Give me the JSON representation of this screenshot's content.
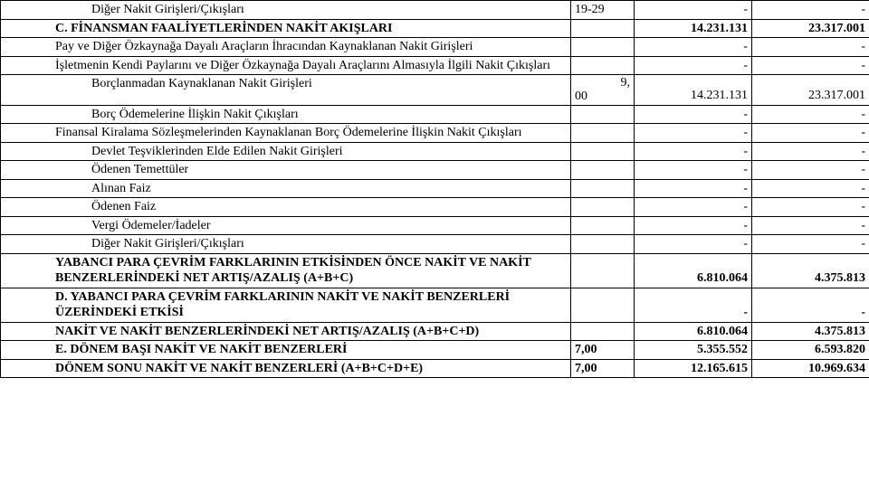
{
  "rows": [
    {
      "label": "Diğer Nakit Girişleri/Çıkışları",
      "labelClass": "indent-3",
      "note": "19-29",
      "v1": "-",
      "v2": "-"
    },
    {
      "label": "C. FİNANSMAN FAALİYETLERİNDEN NAKİT AKIŞLARI",
      "labelClass": "indent-2 bold",
      "note": "",
      "v1": "14.231.131",
      "v2": "23.317.001",
      "boldRow": true
    },
    {
      "label": "Pay ve Diğer Özkaynağa Dayalı Araçların İhracından Kaynaklanan Nakit Girişleri",
      "labelClass": "hang",
      "note": "",
      "v1": "-",
      "v2": "-"
    },
    {
      "label": "İşletmenin Kendi Paylarını ve Diğer Özkaynağa Dayalı Araçlarını Almasıyla İlgili Nakit Çıkışları",
      "labelClass": "hang",
      "note": "",
      "v1": "-",
      "v2": "-"
    },
    {
      "label": "Borçlanmadan Kaynaklanan Nakit Girişleri",
      "labelClass": "indent-3",
      "note": "9, 00",
      "noteMultiline": true,
      "v1": "14.231.131",
      "v2": "23.317.001"
    },
    {
      "label": "Borç Ödemelerine İlişkin Nakit Çıkışları",
      "labelClass": "indent-3",
      "note": "",
      "v1": "-",
      "v2": "-"
    },
    {
      "label": "Finansal Kiralama Sözleşmelerinden Kaynaklanan Borç Ödemelerine İlişkin Nakit Çıkışları",
      "labelClass": "hang",
      "note": "",
      "v1": "-",
      "v2": "-"
    },
    {
      "label": "Devlet Teşviklerinden Elde Edilen Nakit Girişleri",
      "labelClass": "indent-3",
      "note": "",
      "v1": "-",
      "v2": "-"
    },
    {
      "label": "Ödenen Temettüler",
      "labelClass": "indent-3",
      "note": "",
      "v1": "-",
      "v2": "-"
    },
    {
      "label": "Alınan Faiz",
      "labelClass": "indent-3",
      "note": "",
      "v1": "-",
      "v2": "-"
    },
    {
      "label": "Ödenen Faiz",
      "labelClass": "indent-3",
      "note": "",
      "v1": "-",
      "v2": "-"
    },
    {
      "label": "Vergi Ödemeler/İadeler",
      "labelClass": "indent-3",
      "note": "",
      "v1": "-",
      "v2": "-"
    },
    {
      "label": "Diğer Nakit Girişleri/Çıkışları",
      "labelClass": "indent-3",
      "note": "",
      "v1": "-",
      "v2": "-"
    },
    {
      "label": "YABANCI PARA ÇEVRİM FARKLARININ ETKİSİNDEN ÖNCE NAKİT VE NAKİT BENZERLERİNDEKİ NET ARTIŞ/AZALIŞ (A+B+C)",
      "labelClass": "indent-2 bold",
      "note": "",
      "v1": "6.810.064",
      "v2": "4.375.813",
      "boldRow": true
    },
    {
      "label": "D. YABANCI PARA ÇEVRİM FARKLARININ NAKİT VE NAKİT BENZERLERİ ÜZERİNDEKİ ETKİSİ",
      "labelClass": "indent-2 bold",
      "note": "",
      "v1": "-",
      "v2": "-",
      "boldRow": true
    },
    {
      "label": "NAKİT VE NAKİT BENZERLERİNDEKİ NET ARTIŞ/AZALIŞ (A+B+C+D)",
      "labelClass": "indent-2 bold",
      "note": "",
      "v1": "6.810.064",
      "v2": "4.375.813",
      "boldRow": true
    },
    {
      "label": "E. DÖNEM BAŞI NAKİT VE NAKİT BENZERLERİ",
      "labelClass": "indent-2 bold",
      "note": "7,00",
      "v1": "5.355.552",
      "v2": "6.593.820",
      "boldRow": true
    },
    {
      "label": "DÖNEM SONU NAKİT VE NAKİT BENZERLERİ (A+B+C+D+E)",
      "labelClass": "indent-2 bold",
      "note": "7,00",
      "v1": "12.165.615",
      "v2": "10.969.634",
      "boldRow": true
    }
  ]
}
